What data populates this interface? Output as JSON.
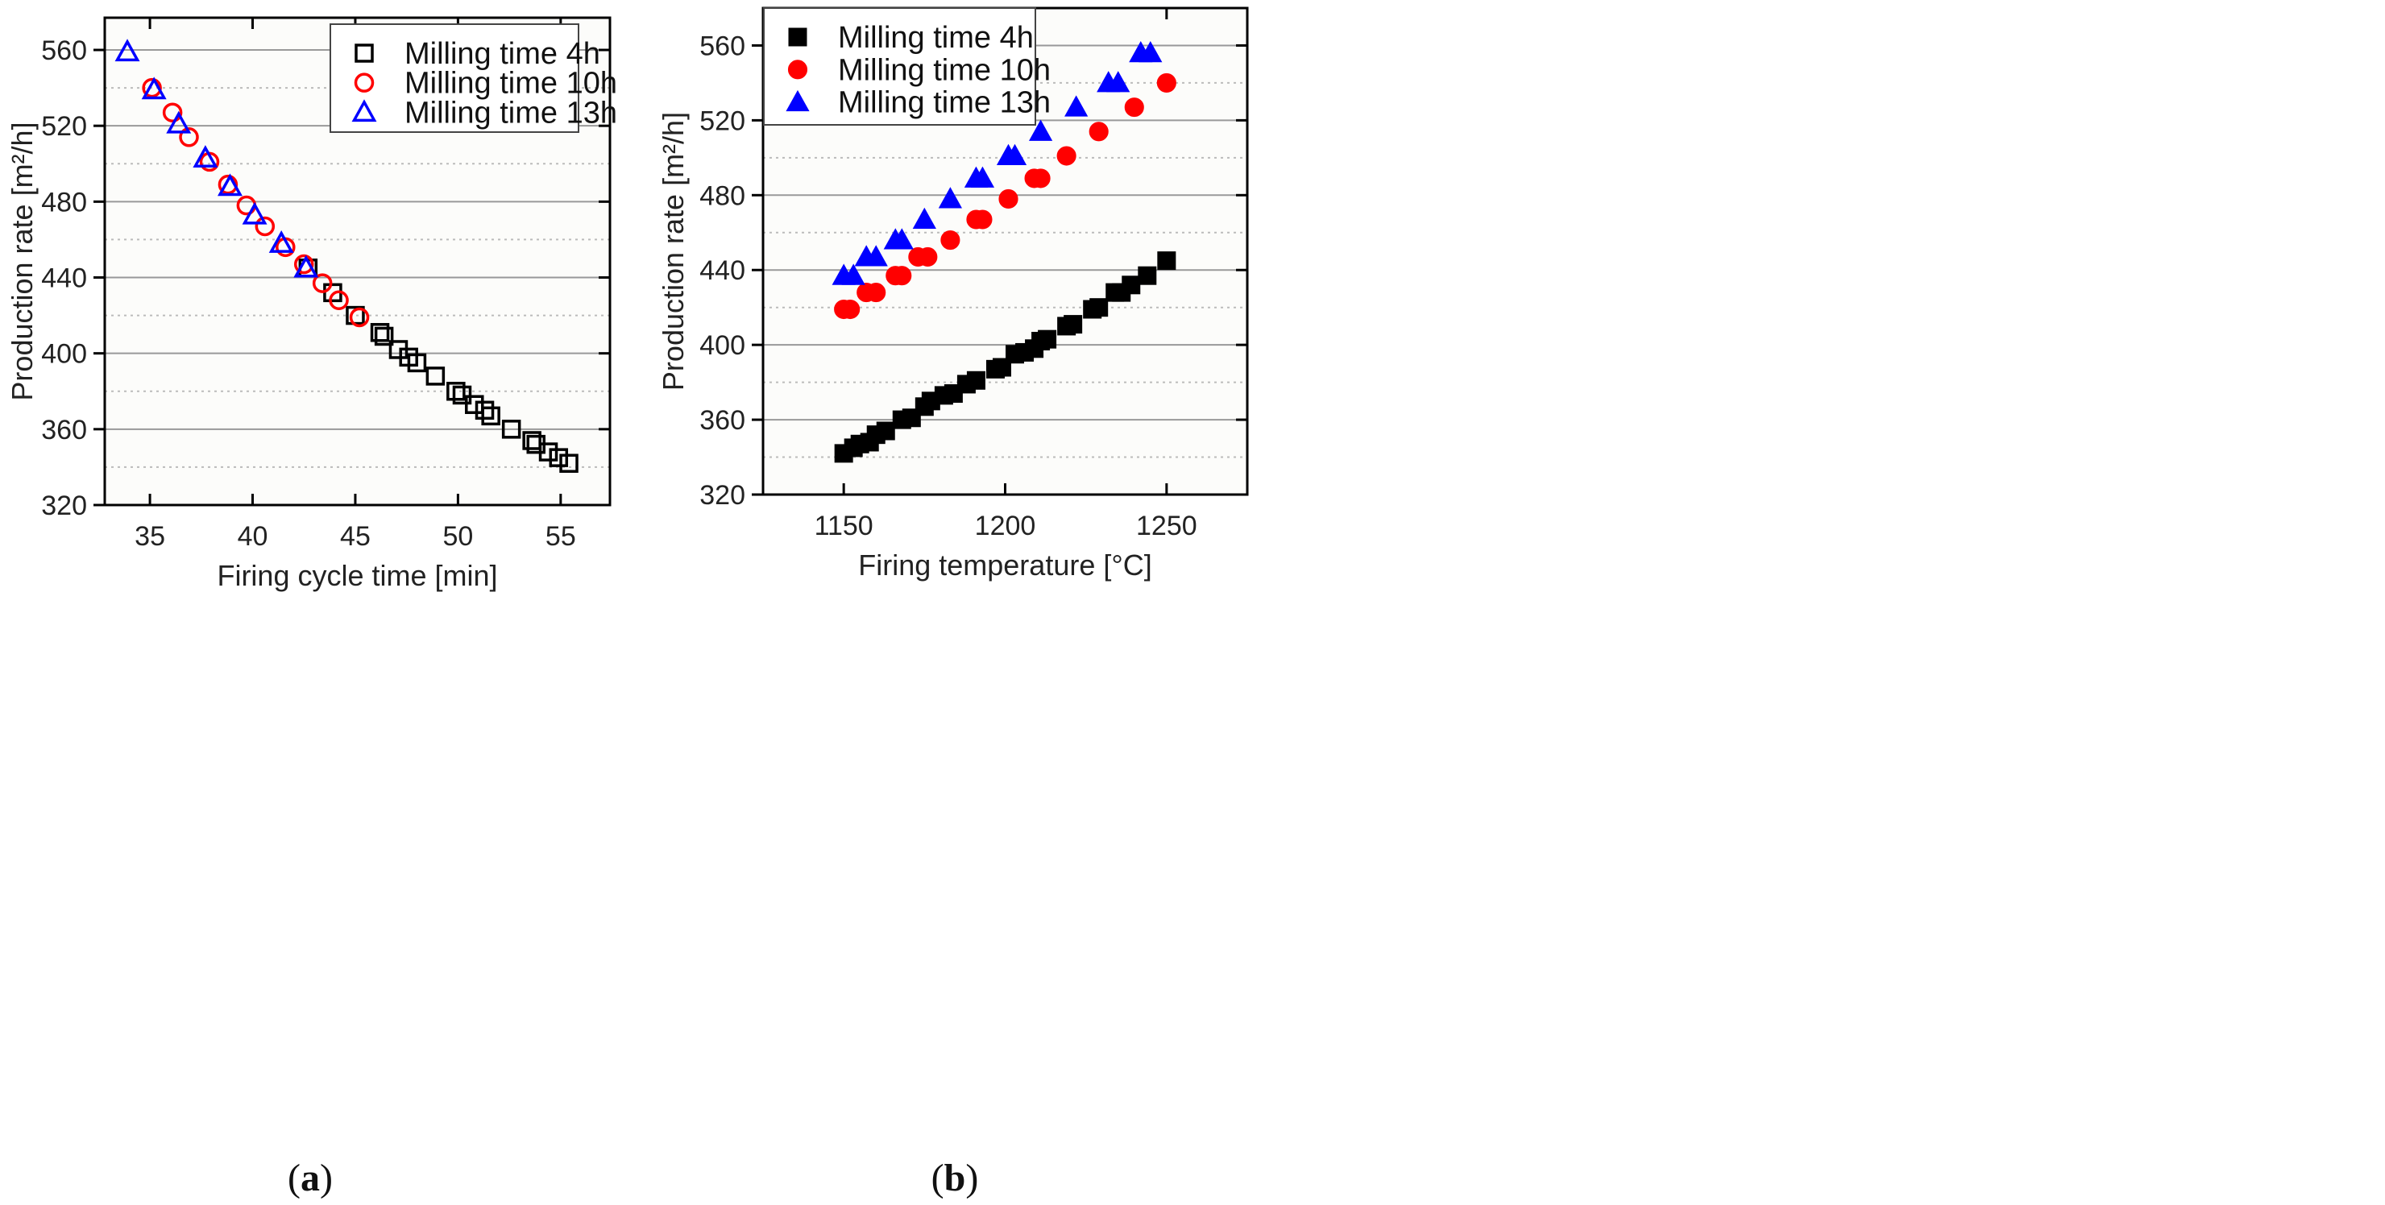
{
  "chart_data": [
    {
      "type": "scatter",
      "panel_label": "a",
      "xlabel": "Firing cycle time [min]",
      "ylabel": "Production rate [m²/h]",
      "xlim": [
        32.8,
        57.4
      ],
      "ylim": [
        320,
        577
      ],
      "xticks": [
        35,
        40,
        45,
        50,
        55
      ],
      "yticks": [
        320,
        360,
        400,
        440,
        480,
        520,
        560
      ],
      "grid": true,
      "legend_position": "top-right",
      "series": [
        {
          "name": "Milling time 4h",
          "marker": "square-open",
          "color": "#000000",
          "points": [
            [
              42.7,
              445
            ],
            [
              43.9,
              432
            ],
            [
              45.0,
              420
            ],
            [
              46.2,
              411
            ],
            [
              46.4,
              409
            ],
            [
              47.1,
              402
            ],
            [
              47.6,
              398
            ],
            [
              48.0,
              395
            ],
            [
              48.9,
              388
            ],
            [
              49.9,
              380
            ],
            [
              50.2,
              378
            ],
            [
              50.8,
              373
            ],
            [
              51.3,
              370
            ],
            [
              51.6,
              367
            ],
            [
              52.6,
              360
            ],
            [
              53.6,
              354
            ],
            [
              53.8,
              352
            ],
            [
              54.4,
              348
            ],
            [
              54.9,
              345
            ],
            [
              55.4,
              342
            ]
          ]
        },
        {
          "name": "Milling time 10h",
          "marker": "circle-open",
          "color": "#ff0000",
          "points": [
            [
              35.1,
              540
            ],
            [
              36.1,
              527
            ],
            [
              36.9,
              514
            ],
            [
              37.9,
              501
            ],
            [
              38.8,
              489
            ],
            [
              39.7,
              478
            ],
            [
              40.6,
              467
            ],
            [
              41.6,
              456
            ],
            [
              42.5,
              447
            ],
            [
              43.4,
              437
            ],
            [
              44.2,
              428
            ],
            [
              45.2,
              419
            ]
          ]
        },
        {
          "name": "Milling time 13h",
          "marker": "triangle-open",
          "color": "#0000ff",
          "points": [
            [
              33.9,
              559
            ],
            [
              35.2,
              539
            ],
            [
              36.4,
              521
            ],
            [
              37.7,
              503
            ],
            [
              38.9,
              488
            ],
            [
              40.1,
              473
            ],
            [
              41.4,
              458
            ],
            [
              42.6,
              445
            ]
          ]
        }
      ]
    },
    {
      "type": "scatter",
      "panel_label": "b",
      "xlabel": "Firing temperature [°C]",
      "ylabel": "Production rate [m²/h]",
      "xlim": [
        1125,
        1275
      ],
      "ylim": [
        320,
        580
      ],
      "xticks": [
        1150,
        1200,
        1250
      ],
      "yticks": [
        320,
        360,
        400,
        440,
        480,
        520,
        560
      ],
      "grid": true,
      "legend_position": "top-left",
      "series": [
        {
          "name": "Milling time 4h",
          "marker": "square-filled",
          "color": "#000000",
          "points": [
            [
              1150,
              342
            ],
            [
              1153,
              345
            ],
            [
              1155,
              347
            ],
            [
              1158,
              348
            ],
            [
              1160,
              352
            ],
            [
              1163,
              354
            ],
            [
              1168,
              360
            ],
            [
              1171,
              361
            ],
            [
              1175,
              367
            ],
            [
              1177,
              370
            ],
            [
              1181,
              373
            ],
            [
              1184,
              374
            ],
            [
              1188,
              379
            ],
            [
              1191,
              381
            ],
            [
              1197,
              387
            ],
            [
              1199,
              388
            ],
            [
              1203,
              395
            ],
            [
              1206,
              396
            ],
            [
              1209,
              398
            ],
            [
              1211,
              402
            ],
            [
              1213,
              403
            ],
            [
              1219,
              410
            ],
            [
              1221,
              411
            ],
            [
              1227,
              419
            ],
            [
              1229,
              420
            ],
            [
              1234,
              428
            ],
            [
              1236,
              428
            ],
            [
              1239,
              432
            ],
            [
              1244,
              437
            ],
            [
              1250,
              445
            ]
          ]
        },
        {
          "name": "Milling time 10h",
          "marker": "circle-filled",
          "color": "#ff0000",
          "points": [
            [
              1150,
              419
            ],
            [
              1152,
              419
            ],
            [
              1157,
              428
            ],
            [
              1160,
              428
            ],
            [
              1166,
              437
            ],
            [
              1168,
              437
            ],
            [
              1173,
              447
            ],
            [
              1176,
              447
            ],
            [
              1183,
              456
            ],
            [
              1191,
              467
            ],
            [
              1193,
              467
            ],
            [
              1201,
              478
            ],
            [
              1209,
              489
            ],
            [
              1211,
              489
            ],
            [
              1219,
              501
            ],
            [
              1229,
              514
            ],
            [
              1240,
              527
            ],
            [
              1250,
              540
            ]
          ]
        },
        {
          "name": "Milling time 13h",
          "marker": "triangle-filled",
          "color": "#0000ff",
          "points": [
            [
              1150,
              437
            ],
            [
              1153,
              437
            ],
            [
              1157,
              447
            ],
            [
              1160,
              447
            ],
            [
              1166,
              456
            ],
            [
              1168,
              456
            ],
            [
              1175,
              467
            ],
            [
              1183,
              478
            ],
            [
              1191,
              489
            ],
            [
              1193,
              489
            ],
            [
              1201,
              501
            ],
            [
              1203,
              501
            ],
            [
              1211,
              514
            ],
            [
              1222,
              527
            ],
            [
              1232,
              540
            ],
            [
              1235,
              540
            ],
            [
              1242,
              556
            ],
            [
              1245,
              556
            ]
          ]
        }
      ]
    }
  ]
}
